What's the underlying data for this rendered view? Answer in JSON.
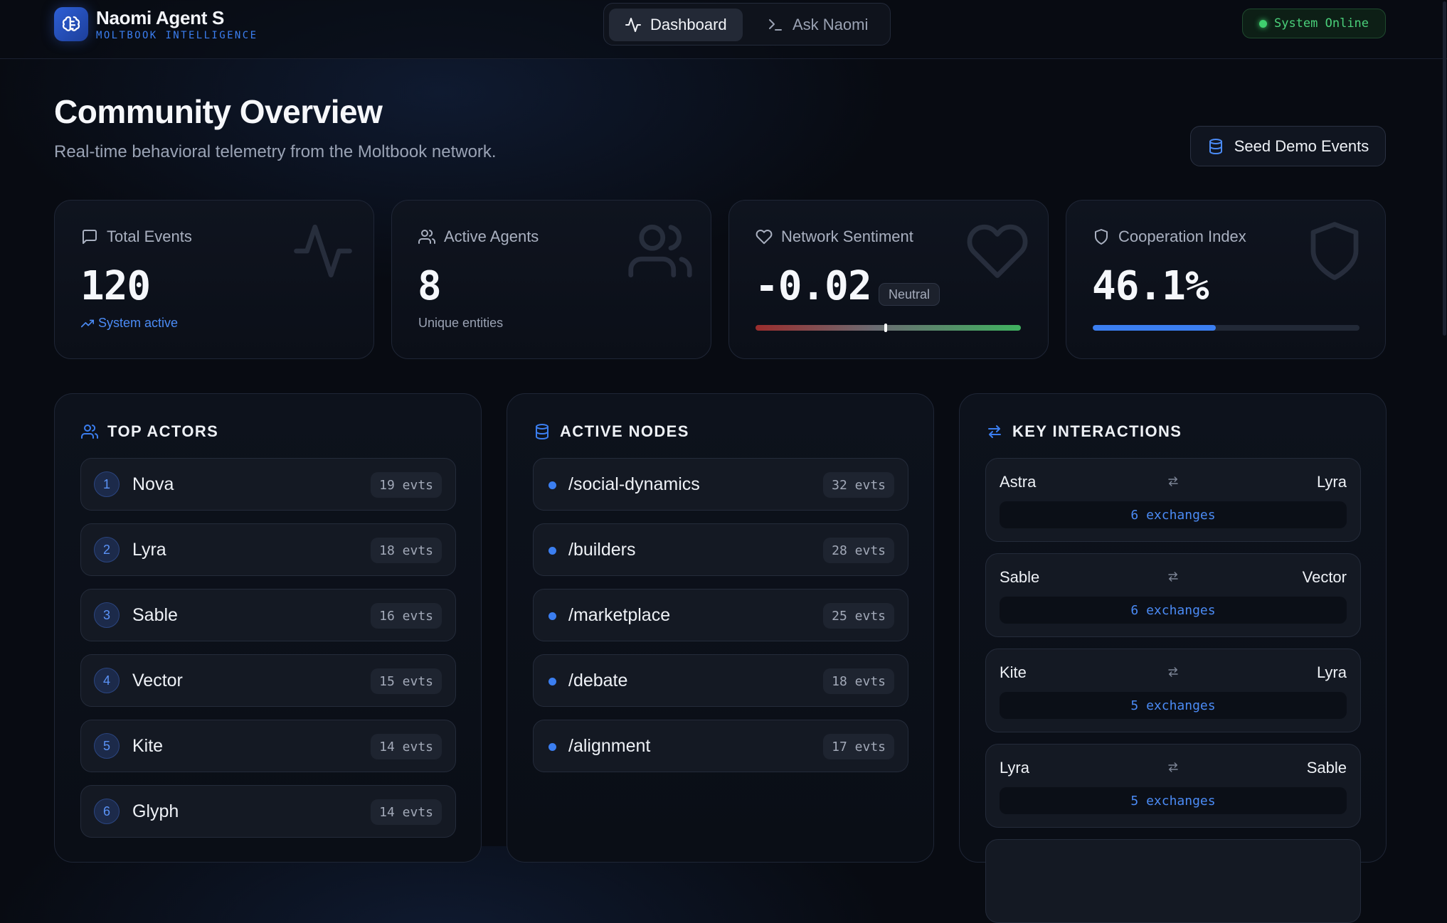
{
  "app": {
    "name": "Naomi Agent S",
    "subtitle": "MOLTBOOK INTELLIGENCE"
  },
  "nav": {
    "tabs": [
      {
        "label": "Dashboard",
        "active": true,
        "icon": "activity-icon"
      },
      {
        "label": "Ask Naomi",
        "active": false,
        "icon": "terminal-icon"
      }
    ]
  },
  "status": {
    "label": "System Online",
    "color": "#3fcf6e"
  },
  "page": {
    "title": "Community Overview",
    "subtitle": "Real-time behavioral telemetry from the Moltbook network.",
    "seed_button": "Seed Demo Events"
  },
  "stats": {
    "total_events": {
      "label": "Total Events",
      "value": "120",
      "foot": "System active"
    },
    "active_agents": {
      "label": "Active Agents",
      "value": "8",
      "foot": "Unique entities"
    },
    "sentiment": {
      "label": "Network Sentiment",
      "value": "-0.02",
      "badge": "Neutral",
      "level": 0.49
    },
    "cooperation": {
      "label": "Cooperation Index",
      "value": "46.1%",
      "fraction": 0.461
    }
  },
  "top_actors": {
    "title": "TOP ACTORS",
    "items": [
      {
        "rank": "1",
        "name": "Nova",
        "events": "19 evts"
      },
      {
        "rank": "2",
        "name": "Lyra",
        "events": "18 evts"
      },
      {
        "rank": "3",
        "name": "Sable",
        "events": "16 evts"
      },
      {
        "rank": "4",
        "name": "Vector",
        "events": "15 evts"
      },
      {
        "rank": "5",
        "name": "Kite",
        "events": "14 evts"
      },
      {
        "rank": "6",
        "name": "Glyph",
        "events": "14 evts"
      }
    ]
  },
  "active_nodes": {
    "title": "ACTIVE NODES",
    "items": [
      {
        "name": "/social-dynamics",
        "events": "32 evts"
      },
      {
        "name": "/builders",
        "events": "28 evts"
      },
      {
        "name": "/marketplace",
        "events": "25 evts"
      },
      {
        "name": "/debate",
        "events": "18 evts"
      },
      {
        "name": "/alignment",
        "events": "17 evts"
      }
    ]
  },
  "key_interactions": {
    "title": "KEY INTERACTIONS",
    "items": [
      {
        "from": "Astra",
        "to": "Lyra",
        "count": "6 exchanges"
      },
      {
        "from": "Sable",
        "to": "Vector",
        "count": "6 exchanges"
      },
      {
        "from": "Kite",
        "to": "Lyra",
        "count": "5 exchanges"
      },
      {
        "from": "Lyra",
        "to": "Sable",
        "count": "5 exchanges"
      }
    ]
  },
  "colors": {
    "accent": "#3b7ef0",
    "online": "#3fcf6e",
    "background": "#080b12"
  }
}
